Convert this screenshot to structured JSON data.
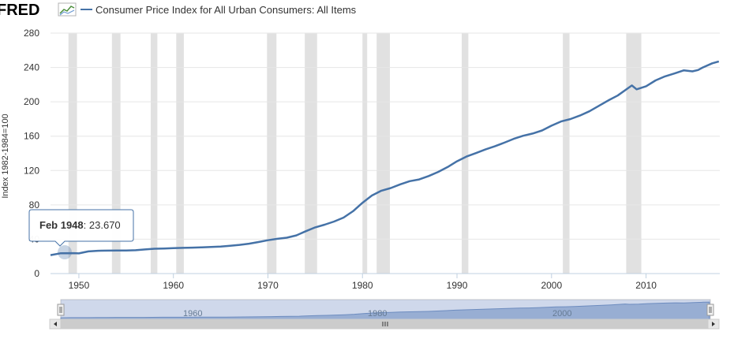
{
  "header": {
    "logo_text": "FRED",
    "logo_icon": "fred-chart-logo-icon",
    "legend_label": "Consumer Price Index for All Urban Consumers: All Items"
  },
  "tooltip": {
    "date": "Feb 1948",
    "value": "23.670"
  },
  "colors": {
    "series": "#4572a7",
    "recession": "#e1e1e1",
    "grid": "#e6e6e6",
    "navigator_fill": "#a9bcd8"
  },
  "navigator": {
    "labels": [
      "1960",
      "1980",
      "2000"
    ],
    "left_arrow_icon": "scroll-left-icon",
    "right_arrow_icon": "scroll-right-icon",
    "grip_icon": "scroll-grip-icon"
  },
  "chart_data": {
    "type": "line",
    "title": "",
    "xlabel": "",
    "ylabel": "Index 1982-1984=100",
    "xlim": [
      1947,
      2017.8
    ],
    "ylim": [
      0,
      280
    ],
    "x_ticks": [
      "1950",
      "1960",
      "1970",
      "1980",
      "1990",
      "2000",
      "2010"
    ],
    "y_ticks": [
      "0",
      "40",
      "80",
      "120",
      "160",
      "200",
      "240",
      "280"
    ],
    "grid": true,
    "legend_position": "top-left",
    "recessions": [
      [
        1948.9,
        1949.8
      ],
      [
        1953.5,
        1954.4
      ],
      [
        1957.6,
        1958.3
      ],
      [
        1960.3,
        1961.1
      ],
      [
        1969.9,
        1970.9
      ],
      [
        1973.9,
        1975.2
      ],
      [
        1980.0,
        1980.5
      ],
      [
        1981.5,
        1982.9
      ],
      [
        1990.5,
        1991.2
      ],
      [
        2001.2,
        2001.9
      ],
      [
        2007.9,
        2009.5
      ]
    ],
    "series": [
      {
        "name": "Consumer Price Index for All Urban Consumers: All Items",
        "points": [
          [
            1947.0,
            21.5
          ],
          [
            1948.1,
            23.67
          ],
          [
            1949.5,
            23.8
          ],
          [
            1950.0,
            23.5
          ],
          [
            1951.0,
            25.8
          ],
          [
            1952.0,
            26.5
          ],
          [
            1953.0,
            26.7
          ],
          [
            1954.0,
            26.9
          ],
          [
            1955.0,
            26.8
          ],
          [
            1956.0,
            27.2
          ],
          [
            1957.0,
            28.1
          ],
          [
            1958.0,
            28.9
          ],
          [
            1959.0,
            29.2
          ],
          [
            1960.0,
            29.6
          ],
          [
            1961.0,
            29.9
          ],
          [
            1962.0,
            30.2
          ],
          [
            1963.0,
            30.6
          ],
          [
            1964.0,
            31.0
          ],
          [
            1965.0,
            31.5
          ],
          [
            1966.0,
            32.4
          ],
          [
            1967.0,
            33.4
          ],
          [
            1968.0,
            34.8
          ],
          [
            1969.0,
            36.7
          ],
          [
            1970.0,
            38.8
          ],
          [
            1971.0,
            40.5
          ],
          [
            1972.0,
            41.8
          ],
          [
            1973.0,
            44.4
          ],
          [
            1974.0,
            49.3
          ],
          [
            1975.0,
            53.8
          ],
          [
            1976.0,
            56.9
          ],
          [
            1977.0,
            60.6
          ],
          [
            1978.0,
            65.2
          ],
          [
            1979.0,
            72.6
          ],
          [
            1980.0,
            82.4
          ],
          [
            1981.0,
            90.9
          ],
          [
            1982.0,
            96.5
          ],
          [
            1983.0,
            99.6
          ],
          [
            1984.0,
            103.9
          ],
          [
            1985.0,
            107.6
          ],
          [
            1986.0,
            109.6
          ],
          [
            1987.0,
            113.6
          ],
          [
            1988.0,
            118.3
          ],
          [
            1989.0,
            124.0
          ],
          [
            1990.0,
            130.7
          ],
          [
            1991.0,
            136.2
          ],
          [
            1992.0,
            140.3
          ],
          [
            1993.0,
            144.5
          ],
          [
            1994.0,
            148.2
          ],
          [
            1995.0,
            152.4
          ],
          [
            1996.0,
            156.9
          ],
          [
            1997.0,
            160.5
          ],
          [
            1998.0,
            163.0
          ],
          [
            1999.0,
            166.6
          ],
          [
            2000.0,
            172.2
          ],
          [
            2001.0,
            177.1
          ],
          [
            2002.0,
            179.9
          ],
          [
            2003.0,
            184.0
          ],
          [
            2004.0,
            188.9
          ],
          [
            2005.0,
            195.3
          ],
          [
            2006.0,
            201.6
          ],
          [
            2007.0,
            207.3
          ],
          [
            2008.5,
            219.0
          ],
          [
            2009.0,
            214.5
          ],
          [
            2010.0,
            218.1
          ],
          [
            2011.0,
            224.9
          ],
          [
            2012.0,
            229.6
          ],
          [
            2013.0,
            233.0
          ],
          [
            2014.0,
            236.7
          ],
          [
            2014.9,
            235.5
          ],
          [
            2015.5,
            237.0
          ],
          [
            2016.0,
            240.0
          ],
          [
            2017.0,
            244.8
          ],
          [
            2017.7,
            247.0
          ]
        ]
      }
    ]
  }
}
